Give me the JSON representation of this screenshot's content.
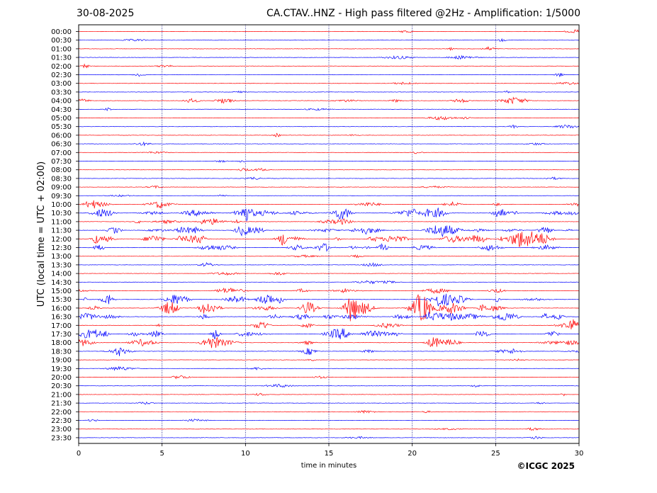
{
  "chart_data": {
    "type": "line",
    "title_left": "30-08-2025",
    "title_right": "CA.CTAV..HNZ - High pass filtered @2Hz - Amplification: 1/5000",
    "xlabel": "time in minutes",
    "ylabel": "UTC (local time = UTC + 02:00)",
    "xlim": [
      0,
      30
    ],
    "x_ticks": [
      "0",
      "5",
      "10",
      "15",
      "20",
      "25",
      "30"
    ],
    "x_tick_values": [
      0,
      5,
      10,
      15,
      20,
      25,
      30
    ],
    "grid_x_every_minutes": 5,
    "rows": [
      "00:00",
      "00:30",
      "01:00",
      "01:30",
      "02:00",
      "02:30",
      "03:00",
      "03:30",
      "04:00",
      "04:30",
      "05:00",
      "05:30",
      "06:00",
      "06:30",
      "07:00",
      "07:30",
      "08:00",
      "08:30",
      "09:00",
      "09:30",
      "10:00",
      "10:30",
      "11:00",
      "11:30",
      "12:00",
      "12:30",
      "13:00",
      "13:30",
      "14:00",
      "14:30",
      "15:00",
      "15:30",
      "16:00",
      "16:30",
      "17:00",
      "17:30",
      "18:00",
      "18:30",
      "19:00",
      "19:30",
      "20:00",
      "20:30",
      "21:00",
      "21:30",
      "22:00",
      "22:30",
      "23:00",
      "23:30"
    ],
    "row_colors": [
      "#ff0000",
      "#0000ff"
    ],
    "activity_levels": [
      1,
      1,
      1,
      1,
      1,
      1,
      1,
      1,
      2,
      1,
      1,
      1,
      1,
      1,
      1,
      1,
      1,
      1,
      1,
      1,
      2,
      5,
      2,
      4,
      5,
      3,
      1,
      1,
      1,
      1,
      2,
      4,
      6,
      4,
      2,
      4,
      3,
      2,
      1,
      1,
      1,
      1,
      1,
      1,
      1,
      1,
      1,
      1
    ],
    "credit": "©ICGC 2025"
  }
}
